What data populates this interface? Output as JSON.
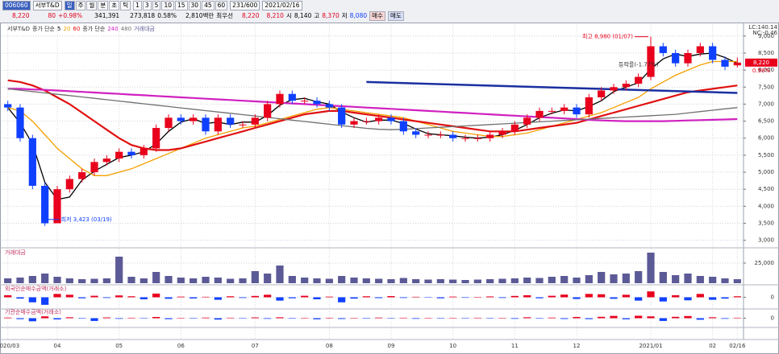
{
  "toolbar": {
    "code": "006060",
    "name": "서부T&D",
    "periods": [
      "일",
      "주",
      "월",
      "분",
      "초",
      "틱"
    ],
    "numbers": [
      "1",
      "3",
      "5",
      "10",
      "15",
      "30",
      "45",
      "60"
    ],
    "count": "231/600",
    "date": "2021/02/16",
    "price": "8,220",
    "change": "80",
    "rate": "+0.98%",
    "volume": "341,391",
    "prev_volume": "273,818",
    "ratio": "0.58%",
    "amount": "2,810백만",
    "best": "최우선",
    "ask": "8,220",
    "bid": "8,210",
    "open_label": "시",
    "open": "8,140",
    "high_label": "고",
    "high": "8,370",
    "low_label": "저",
    "low": "8,080",
    "buy": "매수",
    "sell": "매도"
  },
  "chart_data": [
    {
      "type": "candlestick",
      "title": "서부T&D",
      "legend_prefix": "종가 단순",
      "up_color": "#e8001c",
      "down_color": "#1040ff",
      "categories": [
        "2020/03",
        null,
        null,
        null,
        "04",
        null,
        null,
        null,
        null,
        "05",
        null,
        null,
        null,
        null,
        "06",
        null,
        null,
        null,
        null,
        null,
        "07",
        null,
        null,
        null,
        null,
        null,
        "08",
        null,
        null,
        null,
        null,
        "09",
        null,
        null,
        null,
        null,
        "10",
        null,
        null,
        null,
        null,
        "11",
        null,
        null,
        null,
        null,
        "12",
        null,
        null,
        null,
        null,
        null,
        "2021/01",
        null,
        null,
        null,
        null,
        "02",
        null,
        "02/16"
      ],
      "open": [
        7000,
        6900,
        6000,
        4600,
        3500,
        4500,
        4800,
        5000,
        5300,
        5400,
        5600,
        5500,
        5700,
        6300,
        6600,
        6500,
        6600,
        6200,
        6600,
        6400,
        6400,
        6600,
        7000,
        7300,
        7100,
        7100,
        7000,
        6900,
        6400,
        6500,
        6500,
        6600,
        6500,
        6200,
        6100,
        6100,
        6100,
        6000,
        6000,
        6000,
        6100,
        6200,
        6400,
        6600,
        6800,
        6800,
        6900,
        6700,
        7200,
        7400,
        7500,
        7600,
        7800,
        8700,
        8500,
        8200,
        8500,
        8700,
        8300,
        8140
      ],
      "high": [
        7100,
        7000,
        6100,
        4700,
        4600,
        4900,
        5100,
        5400,
        5500,
        5700,
        5700,
        5800,
        6400,
        6700,
        6700,
        6700,
        6700,
        6700,
        6700,
        6500,
        6700,
        7100,
        7400,
        7400,
        7200,
        7200,
        7100,
        7000,
        6600,
        6600,
        6700,
        6700,
        6600,
        6300,
        6200,
        6200,
        6200,
        6100,
        6100,
        6200,
        6300,
        6500,
        6700,
        6900,
        6900,
        7000,
        7000,
        7300,
        7500,
        7600,
        7700,
        7900,
        8980,
        8800,
        8600,
        8600,
        8800,
        8800,
        8400,
        8370
      ],
      "low": [
        6800,
        5900,
        4500,
        3423,
        3500,
        4400,
        4700,
        4900,
        5200,
        5300,
        5400,
        5400,
        5600,
        6200,
        6400,
        6400,
        6100,
        6100,
        6300,
        6300,
        6300,
        6500,
        6900,
        7000,
        7000,
        6900,
        6800,
        6300,
        6300,
        6400,
        6400,
        6400,
        6100,
        6000,
        6000,
        6000,
        5900,
        5900,
        5900,
        5900,
        6000,
        6100,
        6300,
        6500,
        6700,
        6700,
        6600,
        6600,
        7100,
        7300,
        7400,
        7500,
        7700,
        8400,
        8100,
        8100,
        8400,
        8200,
        8000,
        8080
      ],
      "close": [
        6900,
        6000,
        4600,
        3500,
        4500,
        4800,
        5000,
        5300,
        5400,
        5600,
        5500,
        5700,
        6300,
        6600,
        6500,
        6600,
        6200,
        6600,
        6400,
        6400,
        6600,
        7000,
        7300,
        7100,
        7100,
        7000,
        6900,
        6400,
        6500,
        6500,
        6600,
        6500,
        6200,
        6100,
        6100,
        6100,
        6000,
        6000,
        6000,
        6100,
        6200,
        6400,
        6600,
        6800,
        6800,
        6900,
        6700,
        7200,
        7400,
        7500,
        7600,
        7800,
        8700,
        8500,
        8200,
        8500,
        8700,
        8300,
        8100,
        8220
      ],
      "series": [
        {
          "name": "5",
          "color": "#000000",
          "values": [
            6900,
            6450,
            5830,
            4700,
            4200,
            4270,
            4770,
            5030,
            5230,
            5430,
            5500,
            5600,
            5830,
            6200,
            6470,
            6570,
            6430,
            6470,
            6400,
            6470,
            6470,
            6670,
            6970,
            7130,
            7170,
            7070,
            7000,
            6770,
            6600,
            6470,
            6530,
            6530,
            6430,
            6270,
            6130,
            6100,
            6070,
            6030,
            6000,
            6030,
            6100,
            6230,
            6400,
            6600,
            6730,
            6830,
            6800,
            6930,
            7100,
            7370,
            7500,
            7630,
            8030,
            8330,
            8470,
            8400,
            8470,
            8500,
            8370,
            8200
          ]
        },
        {
          "name": "20",
          "color": "#f5a000",
          "values": [
            6900,
            6800,
            6500,
            6100,
            5700,
            5400,
            5100,
            4900,
            4900,
            5000,
            5100,
            5250,
            5400,
            5550,
            5700,
            5850,
            6000,
            6100,
            6200,
            6300,
            6350,
            6450,
            6550,
            6650,
            6750,
            6850,
            6900,
            6850,
            6800,
            6750,
            6700,
            6650,
            6600,
            6500,
            6400,
            6300,
            6200,
            6150,
            6100,
            6050,
            6050,
            6100,
            6150,
            6250,
            6350,
            6450,
            6550,
            6650,
            6750,
            6900,
            7050,
            7200,
            7450,
            7650,
            7850,
            8000,
            8150,
            8250,
            8250,
            8250
          ]
        },
        {
          "name": "60",
          "color": "#e01010",
          "values": [
            7700,
            7650,
            7550,
            7400,
            7200,
            7000,
            6750,
            6500,
            6250,
            6000,
            5800,
            5700,
            5650,
            5650,
            5700,
            5800,
            5900,
            6000,
            6100,
            6200,
            6300,
            6400,
            6500,
            6600,
            6700,
            6750,
            6800,
            6800,
            6750,
            6700,
            6650,
            6600,
            6550,
            6500,
            6450,
            6400,
            6350,
            6300,
            6250,
            6200,
            6200,
            6200,
            6250,
            6300,
            6350,
            6400,
            6450,
            6550,
            6650,
            6750,
            6850,
            6950,
            7050,
            7150,
            7250,
            7350,
            7400,
            7450,
            7500,
            7550
          ]
        },
        {
          "name": "240",
          "color": "#d020c0",
          "values": [
            7450,
            7450,
            7430,
            7420,
            7400,
            7380,
            7360,
            7340,
            7320,
            7300,
            7280,
            7260,
            7240,
            7220,
            7200,
            7180,
            7160,
            7140,
            7120,
            7100,
            7080,
            7060,
            7040,
            7020,
            7000,
            6980,
            6960,
            6940,
            6920,
            6900,
            6880,
            6860,
            6840,
            6820,
            6800,
            6780,
            6760,
            6740,
            6720,
            6700,
            6680,
            6660,
            6640,
            6620,
            6600,
            6580,
            6560,
            6540,
            6520,
            6510,
            6500,
            6500,
            6500,
            6500,
            6510,
            6520,
            6530,
            6540,
            6550,
            6560
          ]
        },
        {
          "name": "480",
          "color": "#707070",
          "values": [
            7450,
            7410,
            7370,
            7330,
            7290,
            7250,
            7210,
            7170,
            7130,
            7090,
            7050,
            7010,
            6970,
            6930,
            6890,
            6850,
            6810,
            6770,
            6730,
            6690,
            6650,
            6610,
            6570,
            6530,
            6490,
            6450,
            6410,
            6370,
            6330,
            6290,
            6260,
            6250,
            6260,
            6280,
            6300,
            6320,
            6340,
            6360,
            6380,
            6400,
            6420,
            6440,
            6460,
            6480,
            6500,
            6520,
            6540,
            6560,
            6580,
            6600,
            6620,
            6640,
            6660,
            6680,
            6700,
            6740,
            6780,
            6820,
            6860,
            6900
          ]
        }
      ],
      "trendline": {
        "color": "#1a2fa0",
        "from": [
          29,
          7650
        ],
        "to": [
          59,
          7330
        ]
      },
      "high_label": "최고 8,980 (01/07)",
      "low_label": "최저 3,423 (03/19)",
      "change_label": "등락률(-1.77%)",
      "last_label": "8,220",
      "last_rate": "0.98%",
      "lc_label": "LC:140.14",
      "nc_label": "NC:-0.46",
      "ylim": [
        2850,
        9350
      ],
      "yticks": [
        {
          "value": 3000,
          "label": "3,000"
        },
        {
          "value": 3500,
          "label": "3,500"
        },
        {
          "value": 4000,
          "label": "4,000"
        },
        {
          "value": 4500,
          "label": "4,500"
        },
        {
          "value": 5000,
          "label": "5,000"
        },
        {
          "value": 5500,
          "label": "5,500"
        },
        {
          "value": 6000,
          "label": "6,000"
        },
        {
          "value": 6500,
          "label": "6,500"
        },
        {
          "value": 7000,
          "label": "7,000"
        },
        {
          "value": 7500,
          "label": "7,500"
        },
        {
          "value": 8000,
          "label": "8,000"
        },
        {
          "value": 8500,
          "label": "8,500"
        },
        {
          "value": 9000,
          "label": "9,000"
        }
      ]
    },
    {
      "type": "bar",
      "title": "거래대금",
      "color": "#5c5a96",
      "ylim": [
        0,
        40000
      ],
      "yticks": [
        {
          "value": 25000,
          "label": "25,000"
        }
      ],
      "values": [
        6000,
        7000,
        9000,
        12000,
        8000,
        6000,
        5000,
        5500,
        6000,
        33000,
        8000,
        6000,
        14000,
        9000,
        7000,
        6000,
        8000,
        7000,
        5500,
        6000,
        15000,
        12000,
        22000,
        9000,
        7000,
        6000,
        5500,
        9000,
        7000,
        6000,
        5500,
        5000,
        6500,
        5000,
        4500,
        5000,
        4500,
        4000,
        4500,
        5000,
        5500,
        6000,
        7000,
        6500,
        8000,
        9000,
        7000,
        10000,
        14000,
        11000,
        12000,
        15000,
        38000,
        14000,
        10000,
        12000,
        9000,
        8000,
        6000,
        5000
      ]
    },
    {
      "type": "bar",
      "title": "외국인순매수금액(거래소)",
      "up_color": "#e8001c",
      "down_color": "#1040ff",
      "ylim": [
        -600,
        600
      ],
      "yticks": [
        0
      ],
      "values": [
        120,
        -80,
        -300,
        -450,
        200,
        150,
        -60,
        90,
        -40,
        110,
        60,
        -120,
        220,
        -90,
        40,
        -70,
        30,
        -150,
        60,
        -40,
        80,
        150,
        -200,
        -60,
        90,
        -120,
        40,
        -300,
        -80,
        60,
        -50,
        70,
        -40,
        30,
        -20,
        -60,
        40,
        -30,
        20,
        50,
        -40,
        80,
        120,
        -60,
        90,
        160,
        -100,
        200,
        180,
        -90,
        150,
        -200,
        350,
        -250,
        120,
        -180,
        200,
        -150,
        -80,
        60
      ]
    },
    {
      "type": "bar",
      "title": "기관순매수금액(거래소)",
      "up_color": "#e8001c",
      "down_color": "#1040ff",
      "ylim": [
        -500,
        500
      ],
      "yticks": [
        0
      ],
      "values": [
        40,
        -60,
        -200,
        120,
        -80,
        60,
        -30,
        -180,
        50,
        -40,
        30,
        -20,
        80,
        -60,
        20,
        -30,
        40,
        -90,
        30,
        -20,
        50,
        -40,
        60,
        -30,
        20,
        -70,
        30,
        -50,
        20,
        -30,
        40,
        -20,
        30,
        -40,
        20,
        -30,
        10,
        -20,
        30,
        -10,
        20,
        -40,
        60,
        -30,
        40,
        -50,
        80,
        -60,
        90,
        150,
        -70,
        160,
        120,
        -180,
        90,
        140,
        -100,
        60,
        -40,
        30
      ]
    }
  ]
}
